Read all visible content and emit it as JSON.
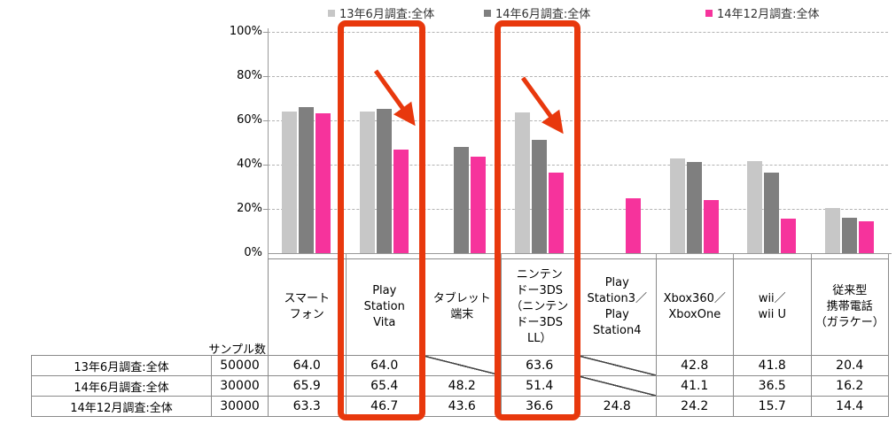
{
  "page": {
    "background": "#ffffff"
  },
  "legend": {
    "items": [
      {
        "label": "13年6月調査:全体",
        "color": "#c7c7c7"
      },
      {
        "label": "14年6月調査:全体",
        "color": "#7f7f7f"
      },
      {
        "label": "14年12月調査:全体",
        "color": "#f6339c"
      }
    ]
  },
  "chart_data": {
    "type": "bar",
    "title": "",
    "xlabel": "",
    "ylabel": "",
    "ylim": [
      0,
      100
    ],
    "yticks": [
      "0%",
      "20%",
      "40%",
      "60%",
      "80%",
      "100%"
    ],
    "grid": "dashed-horizontal",
    "legend_position": "top",
    "categories": [
      "スマートフォン",
      "Play Station Vita",
      "タブレット端末",
      "ニンテンドー3DS（ニンテンドー3DS LL）",
      "Play Station3／Play Station4",
      "Xbox360／XboxOne",
      "wii／wii U",
      "従来型携帯電話（ガラケー）"
    ],
    "category_display": [
      "スマート\nフォン",
      "Play\nStation\nVita",
      "タブレット\n端末",
      "ニンテン\nドー3DS\n（ニンテン\nドー3DS\nLL）",
      "Play\nStation3／\nPlay\nStation4",
      "Xbox360／\nXboxOne",
      "wii／\nwii U",
      "従来型\n携帯電話\n（ガラケー）"
    ],
    "series": [
      {
        "name": "13年6月調査:全体",
        "color": "#c7c7c7",
        "values": [
          64.0,
          64.0,
          null,
          63.6,
          null,
          42.8,
          41.8,
          20.4
        ]
      },
      {
        "name": "14年6月調査:全体",
        "color": "#7f7f7f",
        "values": [
          65.9,
          65.4,
          48.2,
          51.4,
          null,
          41.1,
          36.5,
          16.2
        ]
      },
      {
        "name": "14年12月調査:全体",
        "color": "#f6339c",
        "values": [
          63.3,
          46.7,
          43.6,
          36.6,
          24.8,
          24.2,
          15.7,
          14.4
        ]
      }
    ]
  },
  "table": {
    "sample_header": "サンプル数",
    "rows": [
      {
        "label": "13年6月調査:全体",
        "sample": "50000",
        "values": [
          "64.0",
          "64.0",
          null,
          "63.6",
          null,
          "42.8",
          "41.8",
          "20.4"
        ]
      },
      {
        "label": "14年6月調査:全体",
        "sample": "30000",
        "values": [
          "65.9",
          "65.4",
          "48.2",
          "51.4",
          null,
          "41.1",
          "36.5",
          "16.2"
        ]
      },
      {
        "label": "14年12月調査:全体",
        "sample": "30000",
        "values": [
          "63.3",
          "46.7",
          "43.6",
          "36.6",
          "24.8",
          "24.2",
          "15.7",
          "14.4"
        ]
      }
    ]
  },
  "annotations": {
    "highlight_color": "#e8380d",
    "boxes": [
      {
        "target": "Play Station Vita"
      },
      {
        "target": "ニンテンドー3DS（ニンテンドー3DS LL）"
      }
    ],
    "arrows": [
      {
        "meaning": "decline-arrow"
      },
      {
        "meaning": "decline-arrow"
      }
    ]
  }
}
